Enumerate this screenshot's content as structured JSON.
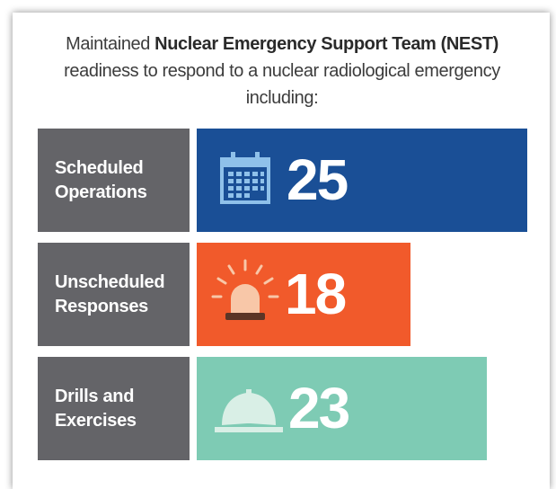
{
  "header": {
    "text_before": "Maintained",
    "bold": "Nuclear Emergency Support Team (NEST)",
    "text_after": "readiness to respond to a nuclear radiological emergency including:"
  },
  "rows": [
    {
      "label": "Scheduled Operations",
      "value": "25"
    },
    {
      "label": "Unscheduled Responses",
      "value": "18"
    },
    {
      "label": "Drills and Exercises",
      "value": "23"
    }
  ]
}
